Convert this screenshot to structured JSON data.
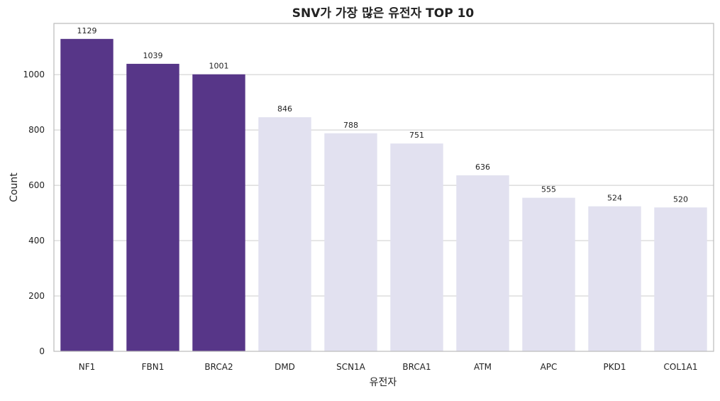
{
  "chart_data": {
    "type": "bar",
    "title": "SNV가 가장 많은 유전자 TOP 10",
    "xlabel": "유전자",
    "ylabel": "Count",
    "categories": [
      "NF1",
      "FBN1",
      "BRCA2",
      "DMD",
      "SCN1A",
      "BRCA1",
      "ATM",
      "APC",
      "PKD1",
      "COL1A1"
    ],
    "values": [
      1129,
      1039,
      1001,
      846,
      788,
      751,
      636,
      555,
      524,
      520
    ],
    "data_labels": [
      "1129",
      "1039",
      "1001",
      "846",
      "788",
      "751",
      "636",
      "555",
      "524",
      "520"
    ],
    "yticks": [
      0,
      200,
      400,
      600,
      800,
      1000
    ],
    "ylim": [
      0,
      1185
    ],
    "grid": "horizontal",
    "highlighted_count": 3,
    "colors": {
      "highlight": "#573688",
      "default": "#e2e1f0",
      "grid": "#cccccc",
      "text": "#222222"
    }
  }
}
